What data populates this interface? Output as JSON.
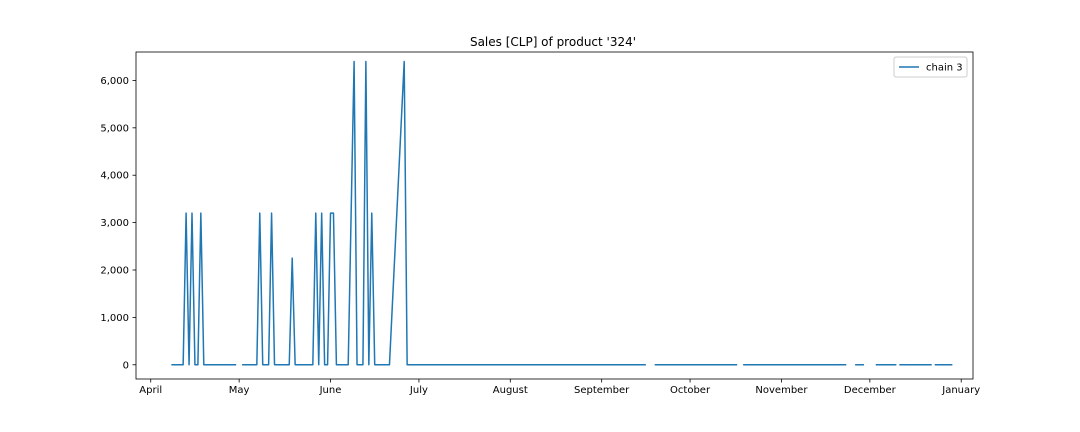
{
  "chart_data": {
    "type": "line",
    "title": "Sales [CLP] of product '324'",
    "xlabel": "",
    "ylabel": "",
    "x_axis": {
      "type": "date",
      "range": [
        "2021-03-27",
        "2022-01-05"
      ],
      "ticks": [
        {
          "date": "2021-04-01",
          "label": "April"
        },
        {
          "date": "2021-05-01",
          "label": "May"
        },
        {
          "date": "2021-06-01",
          "label": "June"
        },
        {
          "date": "2021-07-01",
          "label": "July"
        },
        {
          "date": "2021-08-01",
          "label": "August"
        },
        {
          "date": "2021-09-01",
          "label": "September"
        },
        {
          "date": "2021-10-01",
          "label": "October"
        },
        {
          "date": "2021-11-01",
          "label": "November"
        },
        {
          "date": "2021-12-01",
          "label": "December"
        },
        {
          "date": "2022-01-01",
          "label": "January"
        }
      ]
    },
    "y_axis": {
      "range": [
        -300,
        6600
      ],
      "ticks": [
        {
          "value": 0,
          "label": "0"
        },
        {
          "value": 1000,
          "label": "1,000"
        },
        {
          "value": 2000,
          "label": "2,000"
        },
        {
          "value": 3000,
          "label": "3,000"
        },
        {
          "value": 4000,
          "label": "4,000"
        },
        {
          "value": 5000,
          "label": "5,000"
        },
        {
          "value": 6000,
          "label": "6,000"
        }
      ]
    },
    "grid": false,
    "legend": {
      "position": "top-right",
      "entries": [
        "chain 3"
      ]
    },
    "colors": {
      "series": "#1f77b4",
      "axis": "#000000",
      "background": "#ffffff"
    },
    "series": [
      {
        "name": "chain 3",
        "segments": [
          [
            [
              "2021-04-08",
              0
            ],
            [
              "2021-04-12",
              0
            ],
            [
              "2021-04-13",
              3200
            ],
            [
              "2021-04-14",
              0
            ],
            [
              "2021-04-15",
              3200
            ],
            [
              "2021-04-16",
              0
            ],
            [
              "2021-04-17",
              0
            ],
            [
              "2021-04-18",
              3200
            ],
            [
              "2021-04-19",
              0
            ],
            [
              "2021-04-30",
              0
            ]
          ],
          [
            [
              "2021-05-02",
              0
            ],
            [
              "2021-05-07",
              0
            ],
            [
              "2021-05-08",
              3200
            ],
            [
              "2021-05-09",
              0
            ],
            [
              "2021-05-11",
              0
            ],
            [
              "2021-05-12",
              3200
            ],
            [
              "2021-05-13",
              0
            ],
            [
              "2021-05-18",
              0
            ],
            [
              "2021-05-19",
              2250
            ],
            [
              "2021-05-20",
              0
            ],
            [
              "2021-05-26",
              0
            ],
            [
              "2021-05-27",
              3200
            ],
            [
              "2021-05-28",
              0
            ],
            [
              "2021-05-29",
              3200
            ],
            [
              "2021-05-30",
              0
            ],
            [
              "2021-05-31",
              0
            ],
            [
              "2021-06-01",
              3200
            ],
            [
              "2021-06-02",
              3200
            ],
            [
              "2021-06-03",
              0
            ],
            [
              "2021-06-07",
              0
            ],
            [
              "2021-06-08",
              3200
            ],
            [
              "2021-06-09",
              6400
            ],
            [
              "2021-06-10",
              0
            ],
            [
              "2021-06-12",
              0
            ],
            [
              "2021-06-13",
              6400
            ],
            [
              "2021-06-14",
              0
            ],
            [
              "2021-06-15",
              3200
            ],
            [
              "2021-06-16",
              0
            ],
            [
              "2021-06-21",
              0
            ],
            [
              "2021-06-26",
              6400
            ],
            [
              "2021-06-27",
              0
            ],
            [
              "2021-09-16",
              0
            ]
          ],
          [
            [
              "2021-09-19",
              0
            ],
            [
              "2021-10-17",
              0
            ]
          ],
          [
            [
              "2021-10-19",
              0
            ],
            [
              "2021-11-23",
              0
            ]
          ],
          [
            [
              "2021-11-26",
              0
            ],
            [
              "2021-11-29",
              0
            ]
          ],
          [
            [
              "2021-12-03",
              0
            ],
            [
              "2021-12-10",
              0
            ]
          ],
          [
            [
              "2021-12-11",
              0
            ],
            [
              "2021-12-22",
              0
            ]
          ],
          [
            [
              "2021-12-23",
              0
            ],
            [
              "2021-12-29",
              0
            ]
          ]
        ]
      }
    ]
  }
}
